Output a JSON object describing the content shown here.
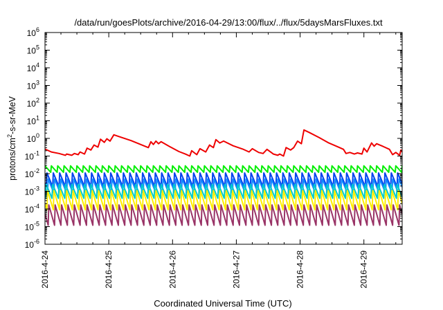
{
  "chart_data": {
    "type": "line",
    "title": "/data/run/goesPlots/archive/2016-04-29/13:00/flux/../flux/5daysMarsFluxes.txt",
    "xlabel": "Coordinated Universal Time (UTC)",
    "ylabel": {
      "pre": "protons/cm",
      "sup": "2",
      "post": "-s-sr-MeV"
    },
    "y_scale": "log",
    "ylim_exp": [
      -6,
      6
    ],
    "y_ticks": [
      {
        "base": "10",
        "exp": "-6",
        "e": -6
      },
      {
        "base": "10",
        "exp": "-5",
        "e": -5
      },
      {
        "base": "10",
        "exp": "-4",
        "e": -4
      },
      {
        "base": "10",
        "exp": "-3",
        "e": -3
      },
      {
        "base": "10",
        "exp": "-2",
        "e": -2
      },
      {
        "base": "10",
        "exp": "-1",
        "e": -1
      },
      {
        "base": "10",
        "exp": "0",
        "e": 0
      },
      {
        "base": "10",
        "exp": "1",
        "e": 1
      },
      {
        "base": "10",
        "exp": "2",
        "e": 2
      },
      {
        "base": "10",
        "exp": "3",
        "e": 3
      },
      {
        "base": "10",
        "exp": "4",
        "e": 4
      },
      {
        "base": "10",
        "exp": "5",
        "e": 5
      },
      {
        "base": "10",
        "exp": "6",
        "e": 6
      }
    ],
    "x_ticks": [
      "2016-4-24",
      "2016-4-25",
      "2016-4-26",
      "2016-4-27",
      "2016-4-28",
      "2016-4-29"
    ],
    "x_range_days": [
      0,
      5.6
    ],
    "grid": false,
    "legend": "none",
    "series": [
      {
        "color": "#ee0000",
        "width": 2,
        "points": [
          [
            0.0,
            0.25
          ],
          [
            0.1,
            0.17
          ],
          [
            0.22,
            0.14
          ],
          [
            0.32,
            0.11
          ],
          [
            0.34,
            0.13
          ],
          [
            0.42,
            0.11
          ],
          [
            0.46,
            0.14
          ],
          [
            0.52,
            0.12
          ],
          [
            0.55,
            0.17
          ],
          [
            0.62,
            0.13
          ],
          [
            0.66,
            0.28
          ],
          [
            0.72,
            0.22
          ],
          [
            0.77,
            0.42
          ],
          [
            0.83,
            0.32
          ],
          [
            0.87,
            0.9
          ],
          [
            0.93,
            0.6
          ],
          [
            0.97,
            0.95
          ],
          [
            1.02,
            0.7
          ],
          [
            1.08,
            1.6
          ],
          [
            1.15,
            1.3
          ],
          [
            1.35,
            0.75
          ],
          [
            1.55,
            0.38
          ],
          [
            1.62,
            0.3
          ],
          [
            1.66,
            0.65
          ],
          [
            1.7,
            0.45
          ],
          [
            1.74,
            0.7
          ],
          [
            1.78,
            0.5
          ],
          [
            1.82,
            0.65
          ],
          [
            1.95,
            0.35
          ],
          [
            2.1,
            0.18
          ],
          [
            2.2,
            0.13
          ],
          [
            2.27,
            0.1
          ],
          [
            2.3,
            0.2
          ],
          [
            2.38,
            0.12
          ],
          [
            2.43,
            0.26
          ],
          [
            2.52,
            0.17
          ],
          [
            2.58,
            0.42
          ],
          [
            2.64,
            0.3
          ],
          [
            2.68,
            0.85
          ],
          [
            2.74,
            0.55
          ],
          [
            2.8,
            0.7
          ],
          [
            2.95,
            0.38
          ],
          [
            3.1,
            0.25
          ],
          [
            3.2,
            0.17
          ],
          [
            3.25,
            0.26
          ],
          [
            3.35,
            0.16
          ],
          [
            3.42,
            0.14
          ],
          [
            3.48,
            0.24
          ],
          [
            3.58,
            0.13
          ],
          [
            3.65,
            0.11
          ],
          [
            3.68,
            0.13
          ],
          [
            3.74,
            0.1
          ],
          [
            3.78,
            0.3
          ],
          [
            3.85,
            0.22
          ],
          [
            3.9,
            0.3
          ],
          [
            3.96,
            0.7
          ],
          [
            4.02,
            0.5
          ],
          [
            4.06,
            3.0
          ],
          [
            4.14,
            2.2
          ],
          [
            4.3,
            1.1
          ],
          [
            4.45,
            0.55
          ],
          [
            4.6,
            0.32
          ],
          [
            4.68,
            0.24
          ],
          [
            4.72,
            0.14
          ],
          [
            4.78,
            0.16
          ],
          [
            4.85,
            0.13
          ],
          [
            4.9,
            0.15
          ],
          [
            4.97,
            0.13
          ],
          [
            5.0,
            0.28
          ],
          [
            5.05,
            0.17
          ],
          [
            5.12,
            0.55
          ],
          [
            5.16,
            0.36
          ],
          [
            5.2,
            0.5
          ],
          [
            5.3,
            0.35
          ],
          [
            5.4,
            0.24
          ],
          [
            5.45,
            0.12
          ],
          [
            5.5,
            0.16
          ],
          [
            5.56,
            0.11
          ],
          [
            5.58,
            0.22
          ],
          [
            5.6,
            0.17
          ]
        ]
      },
      {
        "color": "#00ee00",
        "width": 2,
        "saw": {
          "period": 0.1,
          "top": 0.028,
          "bottom": 0.012,
          "phase": 0.0
        }
      },
      {
        "color": "#0044ee",
        "width": 2,
        "saw": {
          "period": 0.1,
          "top": 0.011,
          "bottom": 0.0018,
          "phase": 0.03
        }
      },
      {
        "color": "#1188ff",
        "width": 2,
        "saw": {
          "period": 0.1,
          "top": 0.005,
          "bottom": 0.0008,
          "phase": 0.05
        }
      },
      {
        "color": "#00cccc",
        "width": 2,
        "saw": {
          "period": 0.1,
          "top": 0.0025,
          "bottom": 0.0004,
          "phase": 0.02
        }
      },
      {
        "color": "#ffee00",
        "width": 2,
        "saw": {
          "period": 0.1,
          "top": 0.0011,
          "bottom": 9e-05,
          "phase": 0.04
        }
      },
      {
        "color": "#993366",
        "width": 2,
        "saw": {
          "period": 0.1,
          "top": 0.00017,
          "bottom": 1.2e-05,
          "phase": 0.06
        }
      }
    ]
  }
}
